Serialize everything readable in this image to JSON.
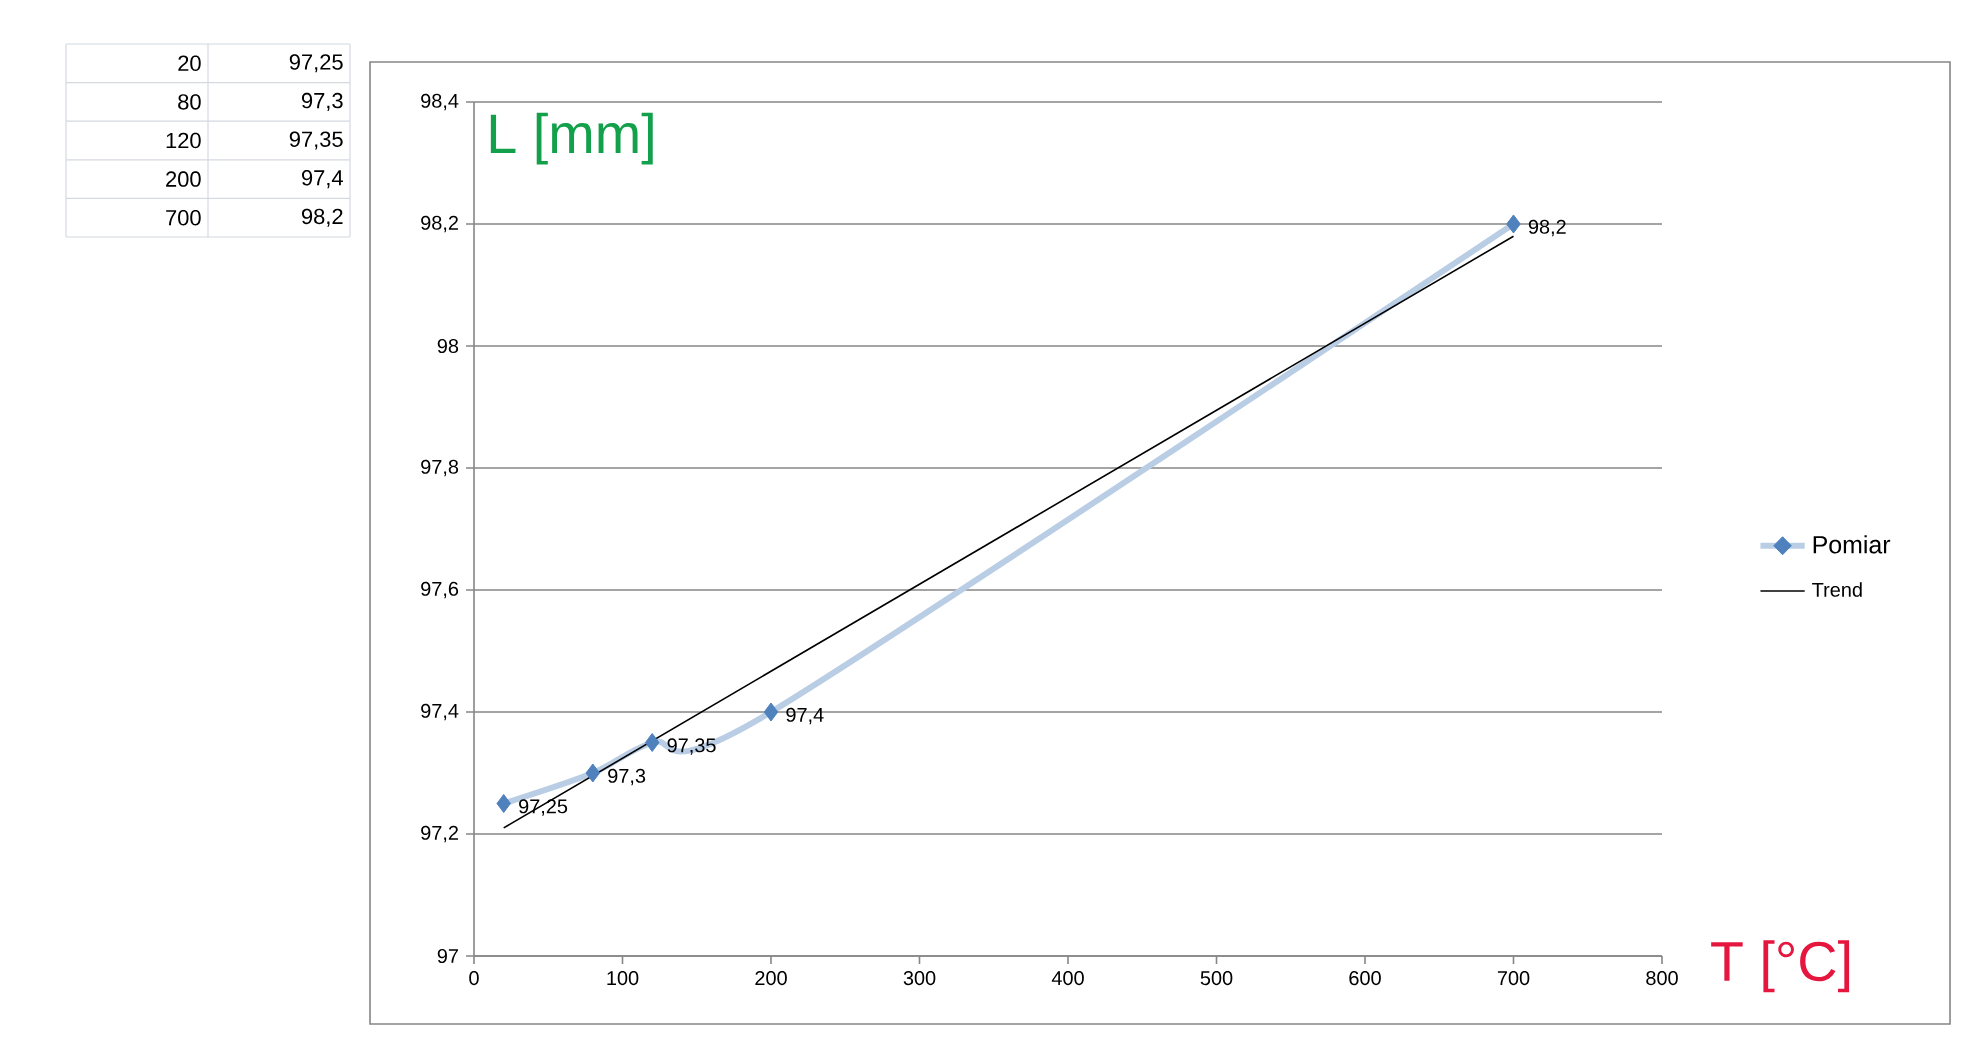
{
  "chart_data": {
    "type": "line",
    "xlabel": "T [°C]",
    "ylabel": "L [mm]",
    "x": [
      20,
      80,
      120,
      200,
      700
    ],
    "series": [
      {
        "name": "Pomiar",
        "color": "#4f81bd",
        "values": [
          97.25,
          97.3,
          97.35,
          97.4,
          98.2
        ],
        "value_labels": [
          "97,25",
          "97,3",
          "97,35",
          "97,4",
          "98,2"
        ]
      },
      {
        "name": "Trend",
        "type": "line",
        "color": "#000000",
        "x": [
          20,
          700
        ],
        "values": [
          97.21,
          98.18
        ],
        "marker": "none"
      }
    ],
    "annotations": [
      "20",
      "80",
      "120",
      "200",
      "700"
    ],
    "xlim": [
      0,
      800
    ],
    "xticks": [
      0,
      100,
      200,
      300,
      400,
      500,
      600,
      700,
      800
    ],
    "ylim": [
      97,
      98.4
    ],
    "yticks": [
      97,
      {
        "value": 97.2,
        "label": "97,2"
      },
      {
        "value": 97.4,
        "label": "97,4"
      },
      {
        "value": 97.6,
        "label": "97,6"
      },
      {
        "value": 97.8,
        "label": "97,8"
      },
      98,
      {
        "value": 98.2,
        "label": "98,2"
      },
      {
        "value": 98.4,
        "label": "98,4"
      }
    ],
    "grid": "y",
    "legend": "right",
    "marker": "diamond"
  }
}
